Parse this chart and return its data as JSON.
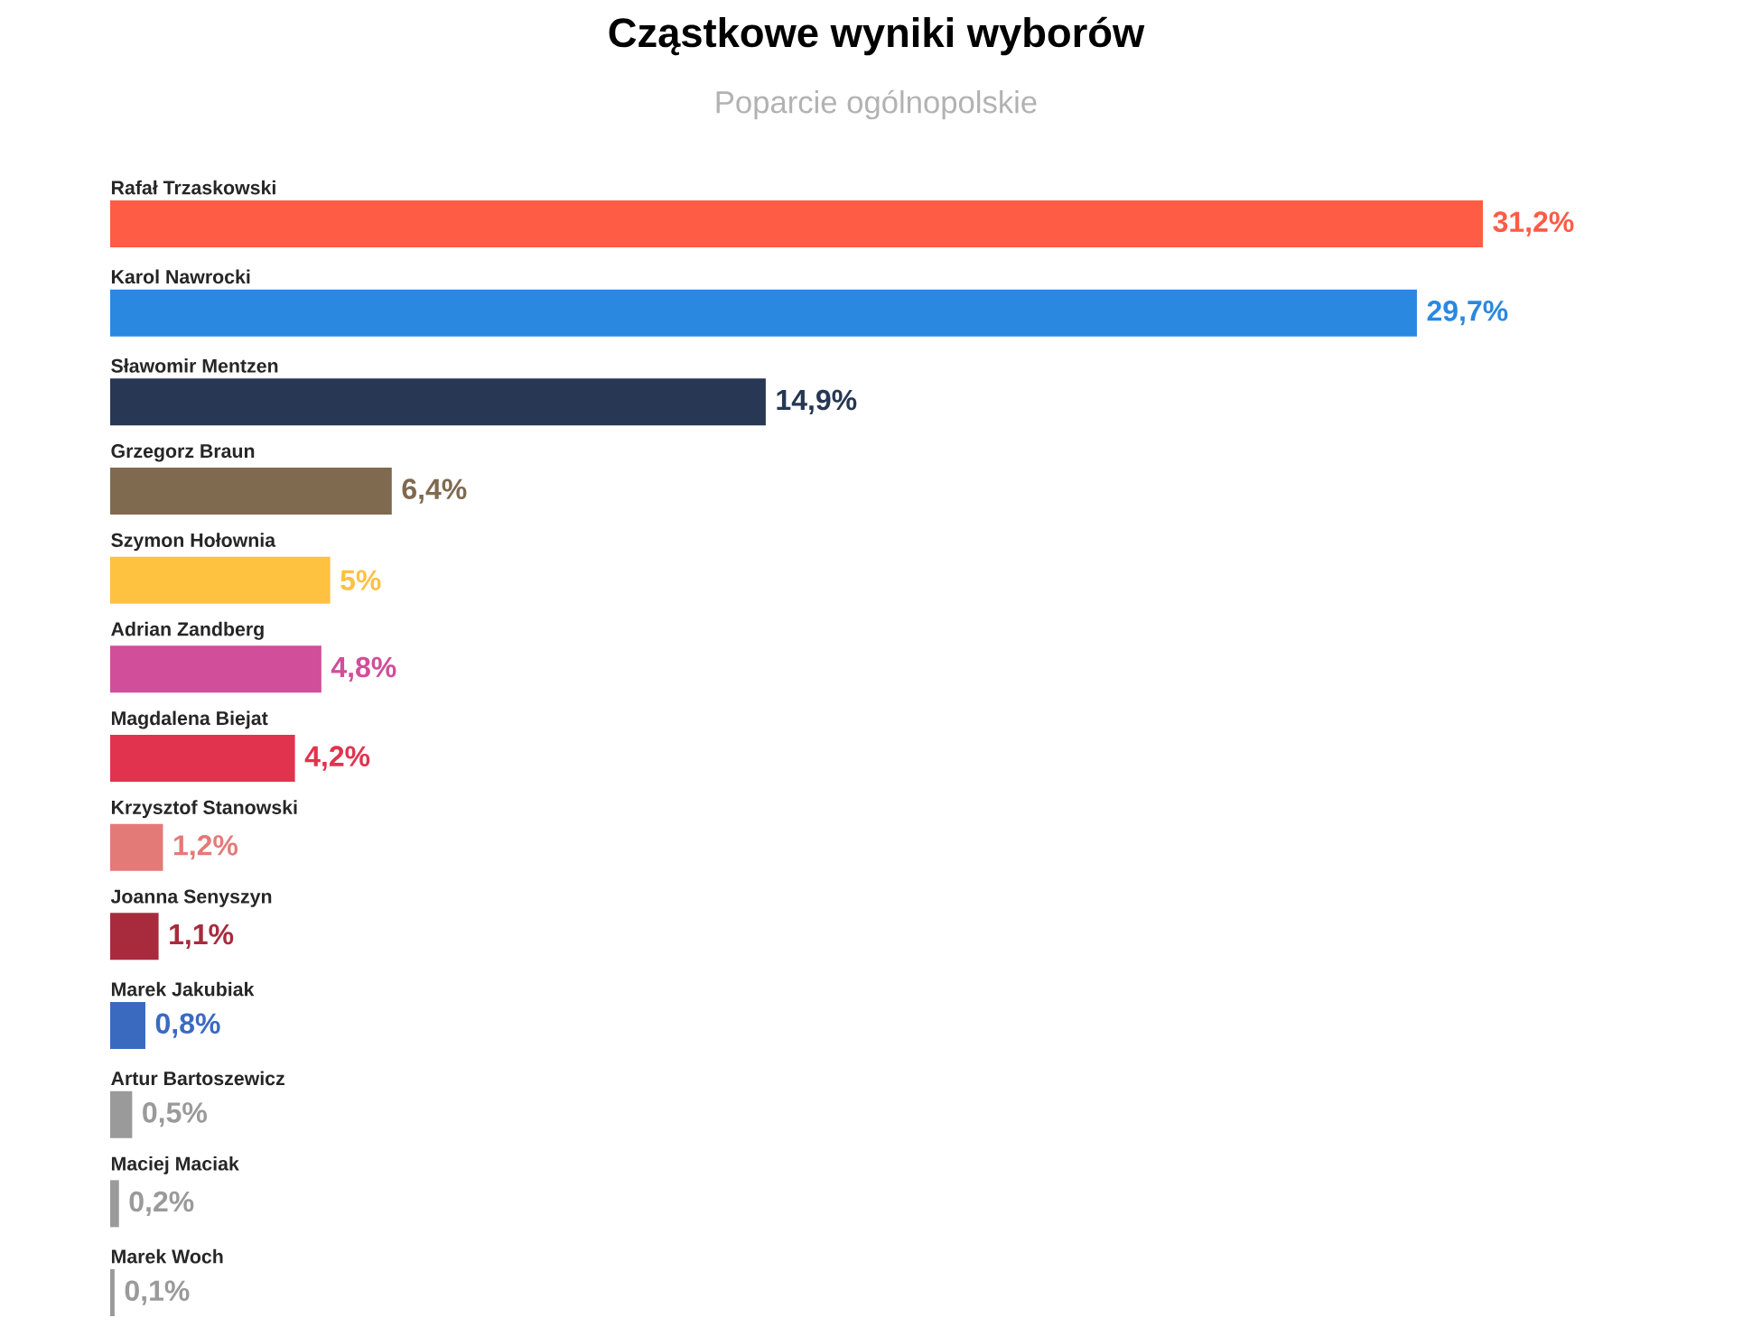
{
  "chart_data": {
    "type": "bar",
    "orientation": "horizontal",
    "title": "Cząstkowe wyniki wyborów",
    "subtitle": "Poparcie ogólnopolskie",
    "categories": [
      "Rafał Trzaskowski",
      "Karol Nawrocki",
      "Sławomir Mentzen",
      "Grzegorz Braun",
      "Szymon Hołownia",
      "Adrian Zandberg",
      "Magdalena Biejat",
      "Krzysztof Stanowski",
      "Joanna Senyszyn",
      "Marek Jakubiak",
      "Artur Bartoszewicz",
      "Maciej Maciak",
      "Marek Woch"
    ],
    "values": [
      31.2,
      29.7,
      14.9,
      6.4,
      5,
      4.8,
      4.2,
      1.2,
      1.1,
      0.8,
      0.5,
      0.2,
      0.1
    ],
    "value_labels": [
      "31,2%",
      "29,7%",
      "14,9%",
      "6,4%",
      "5%",
      "4,8%",
      "4,2%",
      "1,2%",
      "1,1%",
      "0,8%",
      "0,5%",
      "0,2%",
      "0,1%"
    ],
    "colors": [
      "#ff5c45",
      "#2a88e0",
      "#273754",
      "#7f6a50",
      "#fec140",
      "#d04e9a",
      "#e2334e",
      "#e37a78",
      "#a82b3d",
      "#3a6ac0",
      "#9a9a9a",
      "#9a9a9a",
      "#9a9a9a"
    ]
  }
}
